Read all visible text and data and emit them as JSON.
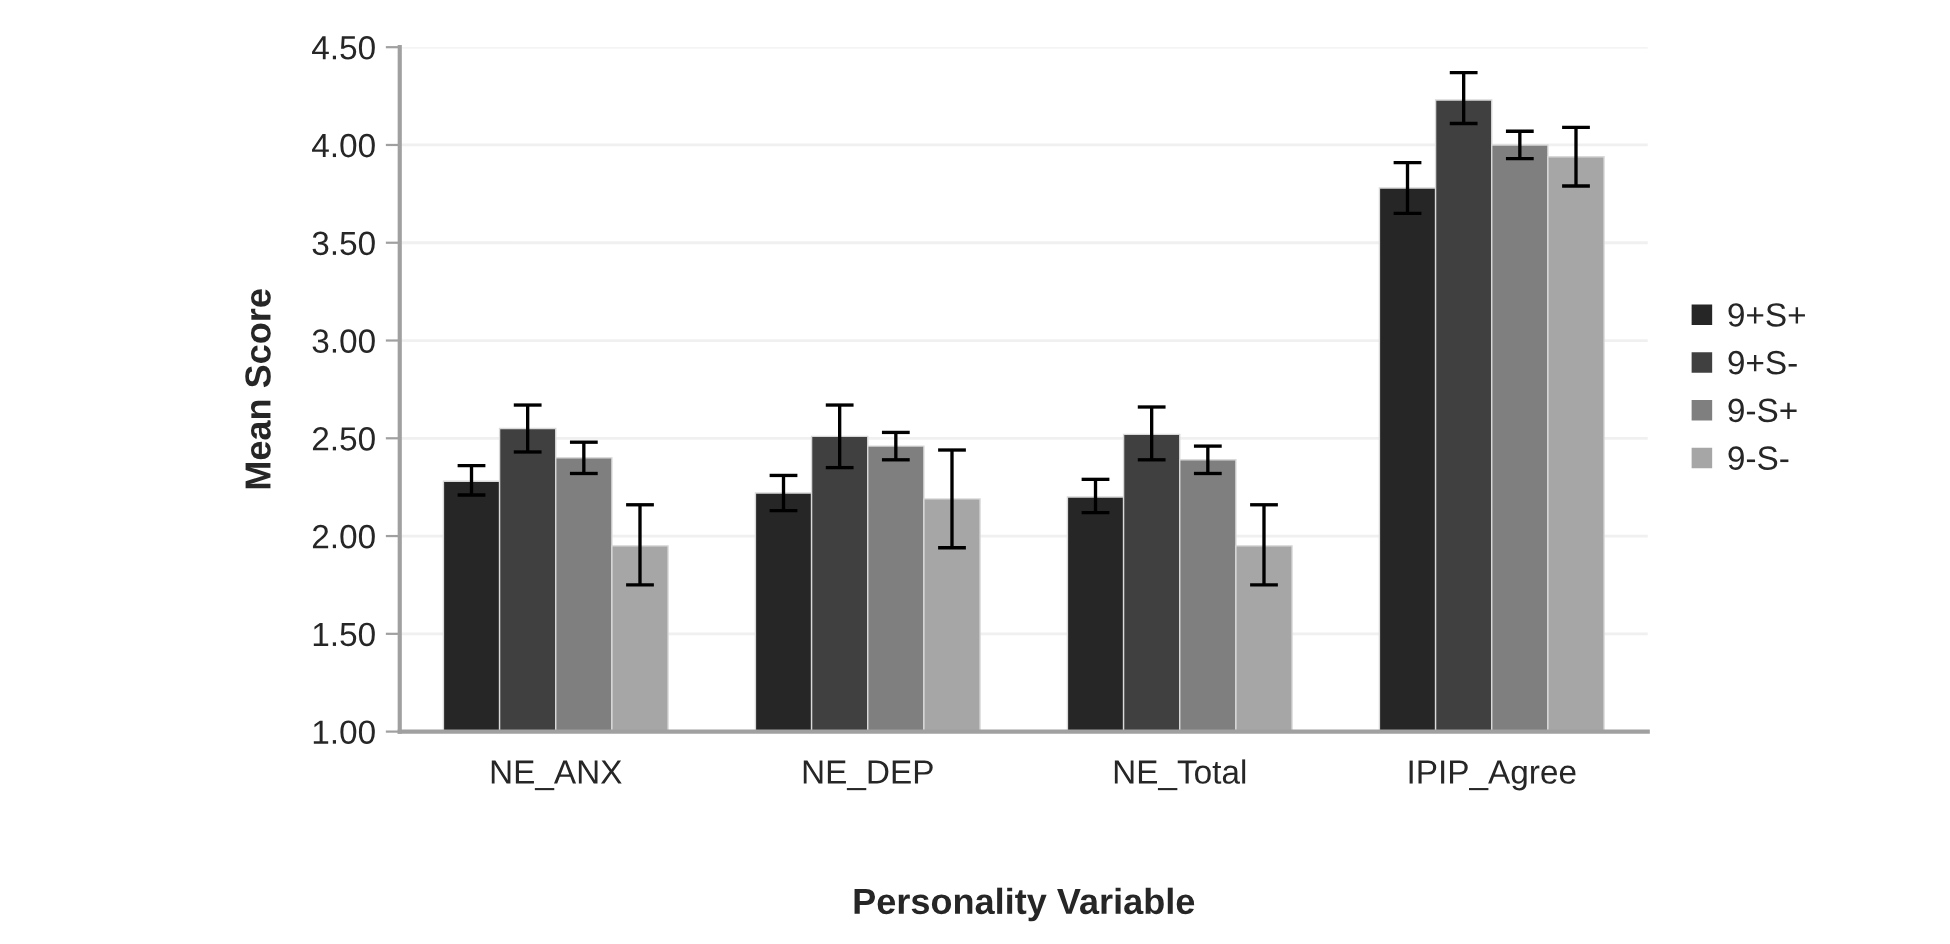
{
  "chart_data": {
    "type": "bar",
    "xlabel": "Personality Variable",
    "ylabel": "Mean Score",
    "categories": [
      "NE_ANX",
      "NE_DEP",
      "NE_Total",
      "IPIP_Agree"
    ],
    "series": [
      {
        "name": "9+S+",
        "color": "#262626",
        "values": [
          2.28,
          2.22,
          2.2,
          3.78
        ],
        "errors": [
          [
            2.21,
            2.36
          ],
          [
            2.13,
            2.31
          ],
          [
            2.12,
            2.29
          ],
          [
            3.65,
            3.91
          ]
        ]
      },
      {
        "name": "9+S-",
        "color": "#404040",
        "values": [
          2.55,
          2.51,
          2.52,
          4.23
        ],
        "errors": [
          [
            2.43,
            2.67
          ],
          [
            2.35,
            2.67
          ],
          [
            2.39,
            2.66
          ],
          [
            4.11,
            4.37
          ]
        ]
      },
      {
        "name": "9-S+",
        "color": "#7f7f7f",
        "values": [
          2.4,
          2.46,
          2.39,
          4.0
        ],
        "errors": [
          [
            2.32,
            2.48
          ],
          [
            2.39,
            2.53
          ],
          [
            2.32,
            2.46
          ],
          [
            3.93,
            4.07
          ]
        ]
      },
      {
        "name": "9-S-",
        "color": "#a6a6a6",
        "values": [
          1.95,
          2.19,
          1.95,
          3.94
        ],
        "errors": [
          [
            1.75,
            2.16
          ],
          [
            1.94,
            2.44
          ],
          [
            1.75,
            2.16
          ],
          [
            3.79,
            4.09
          ]
        ]
      }
    ],
    "ylim": [
      1.0,
      4.5
    ],
    "yticks": [
      {
        "value": 1.0,
        "label": "1.00"
      },
      {
        "value": 1.5,
        "label": "1.50"
      },
      {
        "value": 2.0,
        "label": "2.00"
      },
      {
        "value": 2.5,
        "label": "2.50"
      },
      {
        "value": 3.0,
        "label": "3.00"
      },
      {
        "value": 3.5,
        "label": "3.50"
      },
      {
        "value": 4.0,
        "label": "4.00"
      },
      {
        "value": 4.5,
        "label": "4.50"
      }
    ],
    "grid": "y",
    "legend": "right"
  }
}
